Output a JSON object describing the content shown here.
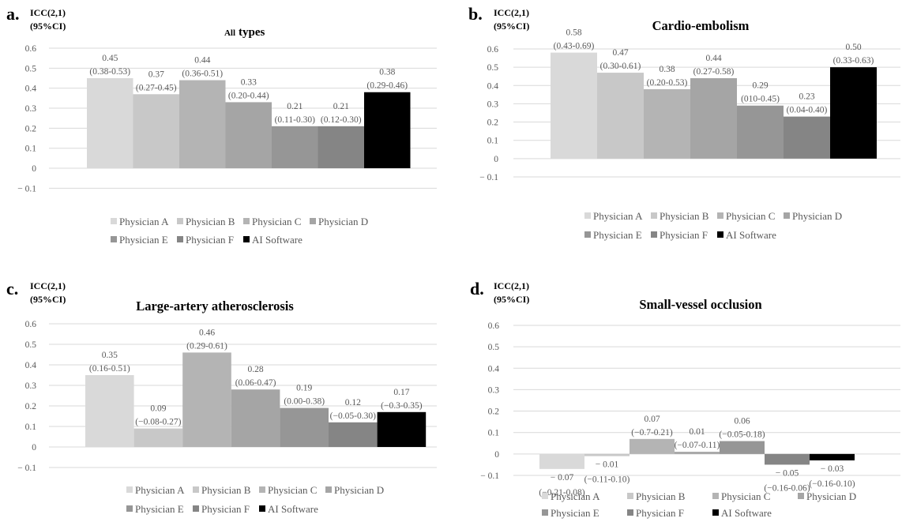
{
  "chart_data": [
    {
      "type": "bar",
      "panel_letter": "a.",
      "y_axis_label": [
        "ICC(2,1)",
        "(95%CI)"
      ],
      "title_prefix": "All",
      "title": "types",
      "categories": [
        "Physician A",
        "Physician B",
        "Physician C",
        "Physician D",
        "Physician E",
        "Physician F",
        "AI Software"
      ],
      "values": [
        0.45,
        0.37,
        0.44,
        0.33,
        0.21,
        0.21,
        0.38
      ],
      "value_labels": [
        "0.45",
        "0.37",
        "0.44",
        "0.33",
        "0.21",
        "0.21",
        "0.38"
      ],
      "ci_labels": [
        "(0.38-0.53)",
        "(0.27-0.45)",
        "(0.36-0.51)",
        "(0.20-0.44)",
        "(0.11-0.30)",
        "(0.12-0.30)",
        "(0.29-0.46)"
      ],
      "y_ticks": [
        "0.6",
        "0.5",
        "0.4",
        "0.3",
        "0.2",
        "0.1",
        "0",
        "− 0.1"
      ],
      "ylim": [
        -0.1,
        0.6
      ],
      "legend_rows": [
        [
          "Physician A",
          "Physician B",
          "Physician C",
          "Physician D"
        ],
        [
          "Physician E",
          "Physician F",
          "AI Software"
        ]
      ]
    },
    {
      "type": "bar",
      "panel_letter": "b.",
      "y_axis_label": [
        "ICC(2,1)",
        "(95%CI)"
      ],
      "title": "Cardio-embolism",
      "categories": [
        "Physician A",
        "Physician B",
        "Physician C",
        "Physician D",
        "Physician E",
        "Physician F",
        "AI Software"
      ],
      "values": [
        0.58,
        0.47,
        0.38,
        0.44,
        0.29,
        0.23,
        0.5
      ],
      "value_labels": [
        "0.58",
        "0.47",
        "0.38",
        "0.44",
        "0.29",
        "0.23",
        "0.50"
      ],
      "ci_labels": [
        "(0.43-0.69)",
        "(0.30-0.61)",
        "(0.20-0.53)",
        "(0.27-0.58)",
        "(010-0.45)",
        "(0.04-0.40)",
        "(0.33-0.63)"
      ],
      "y_ticks": [
        "0.6",
        "0.5",
        "0.4",
        "0.3",
        "0.2",
        "0.1",
        "0",
        "− 0.1"
      ],
      "ylim": [
        -0.1,
        0.6
      ],
      "legend_rows": [
        [
          "Physician A",
          "Physician B",
          "Physician C",
          "Physician D"
        ],
        [
          "Physician E",
          "Physician F",
          "AI Software"
        ]
      ]
    },
    {
      "type": "bar",
      "panel_letter": "c.",
      "y_axis_label": [
        "ICC(2,1)",
        "(95%CI)"
      ],
      "title": "Large-artery  atherosclerosis",
      "categories": [
        "Physician A",
        "Physician B",
        "Physician C",
        "Physician D",
        "Physician E",
        "Physician F",
        "AI Software"
      ],
      "values": [
        0.35,
        0.09,
        0.46,
        0.28,
        0.19,
        0.12,
        0.17
      ],
      "value_labels": [
        "0.35",
        "0.09",
        "0.46",
        "0.28",
        "0.19",
        "0.12",
        "0.17"
      ],
      "ci_labels": [
        "(0.16-0.51)",
        "(−0.08-0.27)",
        "(0.29-0.61)",
        "(0.06-0.47)",
        "(0.00-0.38)",
        "(−0.05-0.30)",
        "(−0.3-0.35)"
      ],
      "y_ticks": [
        "0.6",
        "0.5",
        "0.4",
        "0.3",
        "0.2",
        "0.1",
        "0",
        "− 0.1"
      ],
      "ylim": [
        -0.1,
        0.6
      ],
      "legend_rows": [
        [
          "Physician A",
          "Physician B",
          "Physician C",
          "Physician D"
        ],
        [
          "Physician E",
          "Physician F",
          "AI Software"
        ]
      ]
    },
    {
      "type": "bar",
      "panel_letter": "d.",
      "y_axis_label": [
        "ICC(2,1)",
        "(95%CI)"
      ],
      "title": "Small-vessel occlusion",
      "categories": [
        "Physician A",
        "Physician B",
        "Physician C",
        "Physician D",
        "Physician E",
        "Physician F",
        "AI Software"
      ],
      "values": [
        -0.07,
        -0.01,
        0.07,
        0.01,
        0.06,
        -0.05,
        -0.03
      ],
      "value_labels": [
        "− 0.07",
        "− 0.01",
        "0.07",
        "0.01",
        "0.06",
        "− 0.05",
        "− 0.03"
      ],
      "ci_labels": [
        "(−0.21-0.08)",
        "(−0.11-0.10)",
        "(−0.7-0.21)",
        "(−0.07-0.11)",
        "(−0.05-0.18)",
        "(−0.16-0.06)",
        "(−0.16-0.10)"
      ],
      "y_ticks": [
        "0.6",
        "0.5",
        "0.4",
        "0.3",
        "0.2",
        "0.1",
        "0",
        "− 0.1"
      ],
      "ylim": [
        -0.1,
        0.6
      ],
      "legend_rows": [
        [
          "Physician A",
          "Physician B",
          "Physician C",
          "Physician D"
        ],
        [
          "Physician E",
          "Physician F",
          "AI Software"
        ]
      ]
    }
  ],
  "series_colors": [
    "#d9d9d9",
    "#c8c8c8",
    "#b4b4b4",
    "#a5a5a5",
    "#969696",
    "#858585",
    "#000000"
  ],
  "gridline_color": "#d9d9d9",
  "text_color": "#595959",
  "grid": true,
  "legend_placement": "bottom"
}
